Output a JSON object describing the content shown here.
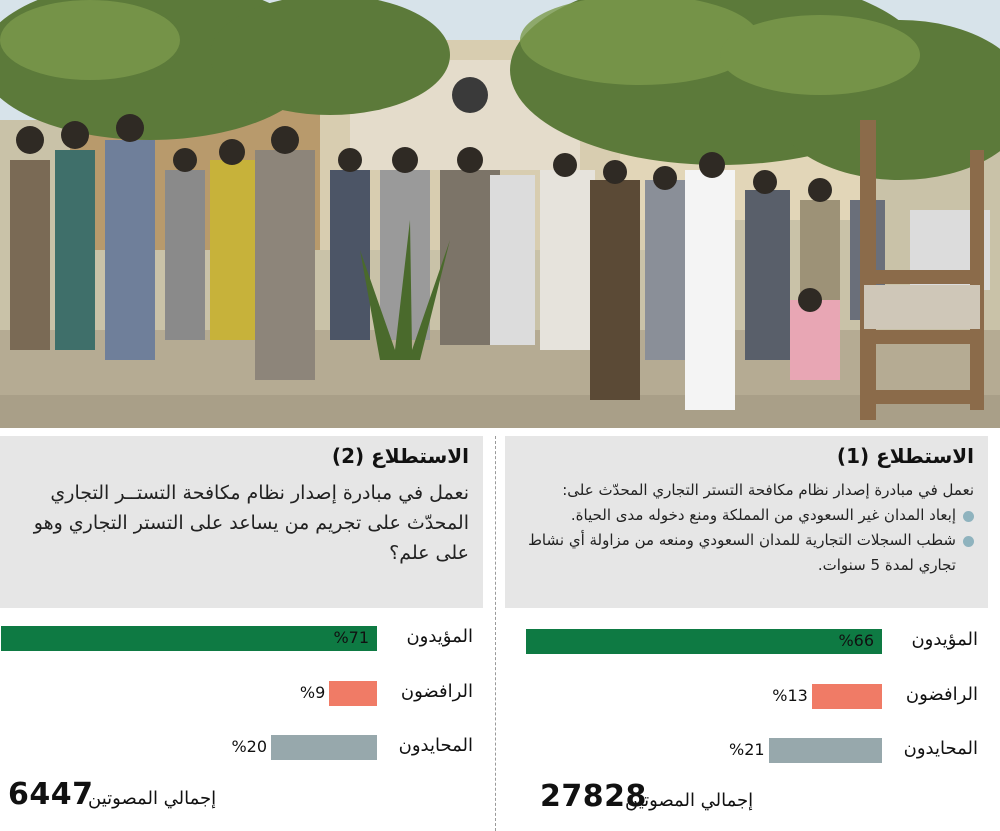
{
  "colors": {
    "supporters": "#0e7a43",
    "rejecters": "#f07b66",
    "neutral": "#97a8ac",
    "panel": "#e6e6e6",
    "bullet": "#8fb3be"
  },
  "photo": {
    "description_icon": "photo-illustration"
  },
  "polls": [
    {
      "title": "الاستطلاع (1)",
      "question": "نعمل في مبادرة إصدار نظام مكافحة التستر التجاري المحدّث على:",
      "bullets": [
        "إبعاد المدان غير السعودي من المملكة ومنع دخوله مدى الحياة.",
        "شطب السجلات التجارية للمدان السعودي ومنعه من مزاولة أي نشاط تجاري لمدة 5 سنوات."
      ],
      "rows": [
        {
          "label": "المؤيدون",
          "pct_text": "%66"
        },
        {
          "label": "الرافضون",
          "pct_text": "%13"
        },
        {
          "label": "المحايدون",
          "pct_text": "%21"
        }
      ],
      "total_label": "إجمالي المصوتين",
      "total_value": "27828"
    },
    {
      "title": "الاستطلاع (2)",
      "question": "نعمل في مبادرة إصدار نظام مكافحة التستــر التجاري المحدّث على تجريم من يساعد على التستر التجاري وهو على علم؟",
      "rows": [
        {
          "label": "المؤيدون",
          "pct_text": "%71"
        },
        {
          "label": "الرافضون",
          "pct_text": "%9"
        },
        {
          "label": "المحايدون",
          "pct_text": "%20"
        }
      ],
      "total_label": "إجمالي المصوتين",
      "total_value": "6447"
    }
  ],
  "chart_data": [
    {
      "type": "bar",
      "title": "الاستطلاع (1)",
      "categories": [
        "المؤيدون",
        "الرافضون",
        "المحايدون"
      ],
      "values": [
        66,
        13,
        21
      ],
      "unit": "%",
      "total_voters": 27828
    },
    {
      "type": "bar",
      "title": "الاستطلاع (2)",
      "categories": [
        "المؤيدون",
        "الرافضون",
        "المحايدون"
      ],
      "values": [
        71,
        9,
        20
      ],
      "unit": "%",
      "total_voters": 6447
    }
  ]
}
